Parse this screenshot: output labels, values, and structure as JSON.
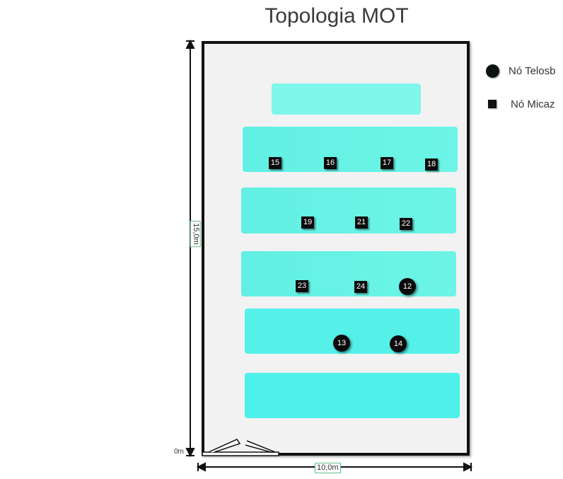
{
  "title": "Topologia MOT",
  "legend": {
    "telosb_label": "Nó Telosb",
    "micaz_label": "Nó Micaz"
  },
  "dimensions": {
    "height_label": "15,0m",
    "width_label": "10,0m",
    "origin_label": "0m"
  },
  "nodes": {
    "n15": "15",
    "n16": "16",
    "n17": "17",
    "n18": "18",
    "n19": "19",
    "n21": "21",
    "n22": "22",
    "n23": "23",
    "n24": "24",
    "n12": "12",
    "n13": "13",
    "n14": "14"
  },
  "colors": {
    "bench": "#6cf5e6",
    "node": "#0b0b0b",
    "wall": "#111111"
  }
}
